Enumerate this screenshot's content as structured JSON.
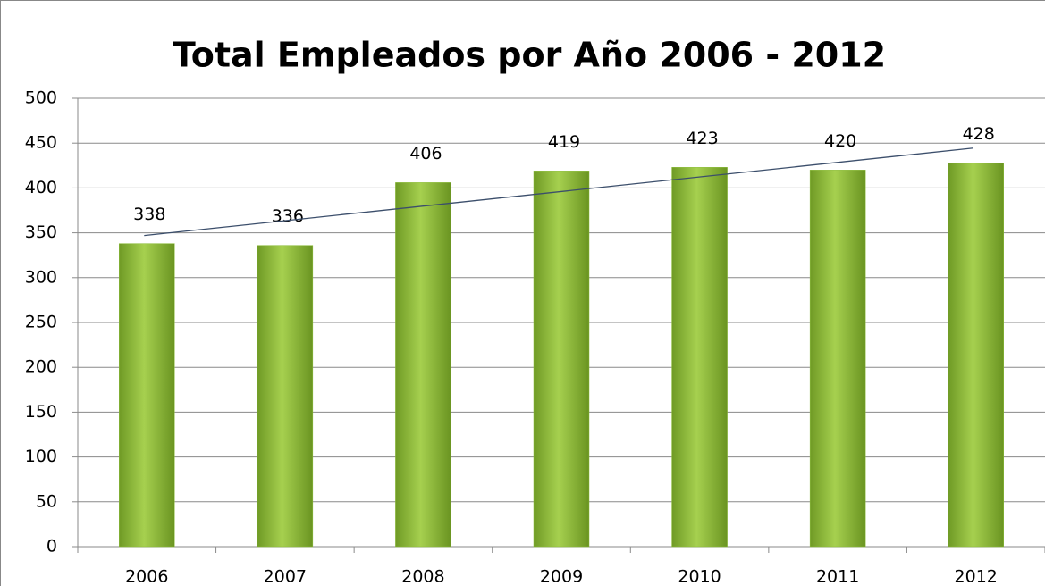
{
  "chart_data": {
    "type": "bar",
    "title": "Total Empleados por Año 2006 - 2012",
    "categories": [
      "2006",
      "2007",
      "2008",
      "2009",
      "2010",
      "2011",
      "2012"
    ],
    "values": [
      338,
      336,
      406,
      419,
      423,
      420,
      428
    ],
    "color": "#8cbd3a",
    "ylim": [
      0,
      500
    ],
    "yticks": [
      0,
      50,
      100,
      150,
      200,
      250,
      300,
      350,
      400,
      450,
      500
    ],
    "grid": true,
    "data_labels": true,
    "trendline": "linear"
  }
}
